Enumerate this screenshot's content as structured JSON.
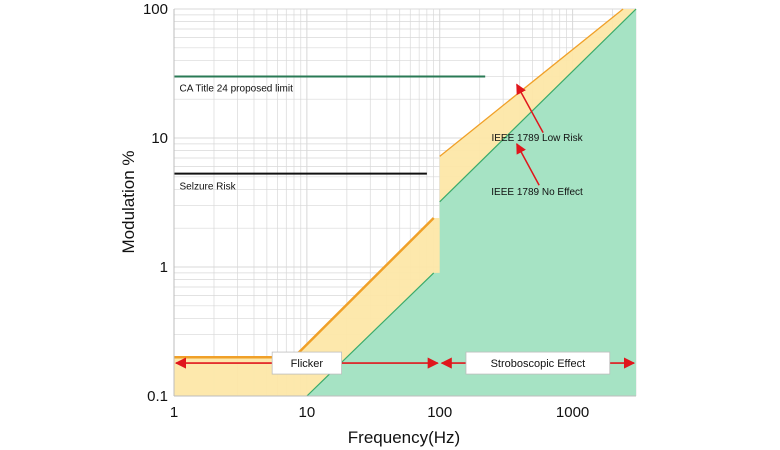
{
  "chart_data": {
    "type": "line",
    "title": "",
    "xlabel": "Frequency(Hz)",
    "ylabel": "Modulation %",
    "xscale": "log",
    "yscale": "log",
    "xlim": [
      1,
      3000
    ],
    "ylim": [
      0.1,
      100
    ],
    "grid": true,
    "x_ticks": [
      {
        "value": 1,
        "label": "1"
      },
      {
        "value": 10,
        "label": "10"
      },
      {
        "value": 100,
        "label": "100"
      },
      {
        "value": 1000,
        "label": "1000"
      }
    ],
    "y_ticks": [
      {
        "value": 0.1,
        "label": "0.1"
      },
      {
        "value": 1,
        "label": "1"
      },
      {
        "value": 10,
        "label": "10"
      },
      {
        "value": 100,
        "label": "100"
      }
    ],
    "colors": {
      "low_risk_fill": "#fde7a8",
      "low_risk_line": "#f0a028",
      "no_effect_fill": "#a6e3c4",
      "no_effect_line": "#3aaa6a",
      "title24_line": "#2a7a55",
      "seizure_line": "#111111",
      "arrow": "#e0161c",
      "grid": "#d8d8d8"
    },
    "regions": {
      "ieee_low_risk": {
        "points": [
          [
            1,
            0.2
          ],
          [
            8,
            0.2
          ],
          [
            90,
            2.4
          ],
          [
            100,
            2.4
          ],
          [
            100,
            7.2
          ],
          [
            2400,
            100
          ],
          [
            3000,
            100
          ],
          [
            3000,
            0.1
          ],
          [
            1,
            0.1
          ]
        ]
      },
      "ieee_no_effect": {
        "points": [
          [
            10,
            0.1
          ],
          [
            90,
            0.9
          ],
          [
            100,
            0.9
          ],
          [
            100,
            3.2
          ],
          [
            3000,
            100
          ],
          [
            3000,
            0.1
          ]
        ]
      }
    },
    "series": [
      {
        "name": "CA Title 24 proposed limit",
        "points": [
          [
            1,
            30
          ],
          [
            220,
            30
          ]
        ],
        "color": "#2a7a55",
        "width": 2
      },
      {
        "name": "Selzure Risk",
        "points": [
          [
            1,
            5.3
          ],
          [
            80,
            5.3
          ]
        ],
        "color": "#111111",
        "width": 2
      },
      {
        "name": "IEEE 1789 Low Risk",
        "points": [
          [
            1,
            0.2
          ],
          [
            8,
            0.2
          ],
          [
            90,
            2.4
          ]
        ],
        "color": "#f0a028",
        "width": 2.5
      },
      {
        "name": "IEEE 1789 Low Risk",
        "points": [
          [
            100,
            7.2
          ],
          [
            2400,
            100
          ]
        ],
        "color": "#f0a028",
        "width": 1.3
      },
      {
        "name": "IEEE 1789 No Effect",
        "points": [
          [
            10,
            0.1
          ],
          [
            90,
            0.9
          ]
        ],
        "color": "#3aaa6a",
        "width": 1.2
      },
      {
        "name": "IEEE 1789 No Effect",
        "points": [
          [
            100,
            3.2
          ],
          [
            3000,
            100
          ]
        ],
        "color": "#3aaa6a",
        "width": 1.2
      }
    ],
    "annotations": [
      {
        "text": "CA Title 24 proposed limit",
        "x": 1.1,
        "y": 23
      },
      {
        "text": "Selzure Risk",
        "x": 1.1,
        "y": 4.0
      },
      {
        "text": "IEEE 1789 Low Risk",
        "x": 540,
        "y": 9.5
      },
      {
        "text": "IEEE 1789 No Effect",
        "x": 540,
        "y": 3.6
      }
    ],
    "arrow_annotations": [
      {
        "from": [
          600,
          11
        ],
        "to": [
          380,
          26
        ]
      },
      {
        "from": [
          560,
          4.3
        ],
        "to": [
          380,
          9.0
        ]
      }
    ],
    "ranges": [
      {
        "label": "Flicker",
        "from": 1,
        "to": 100,
        "y": 0.18
      },
      {
        "label": "Stroboscopic Effect",
        "from": 100,
        "to": 3000,
        "y": 0.18
      }
    ]
  }
}
